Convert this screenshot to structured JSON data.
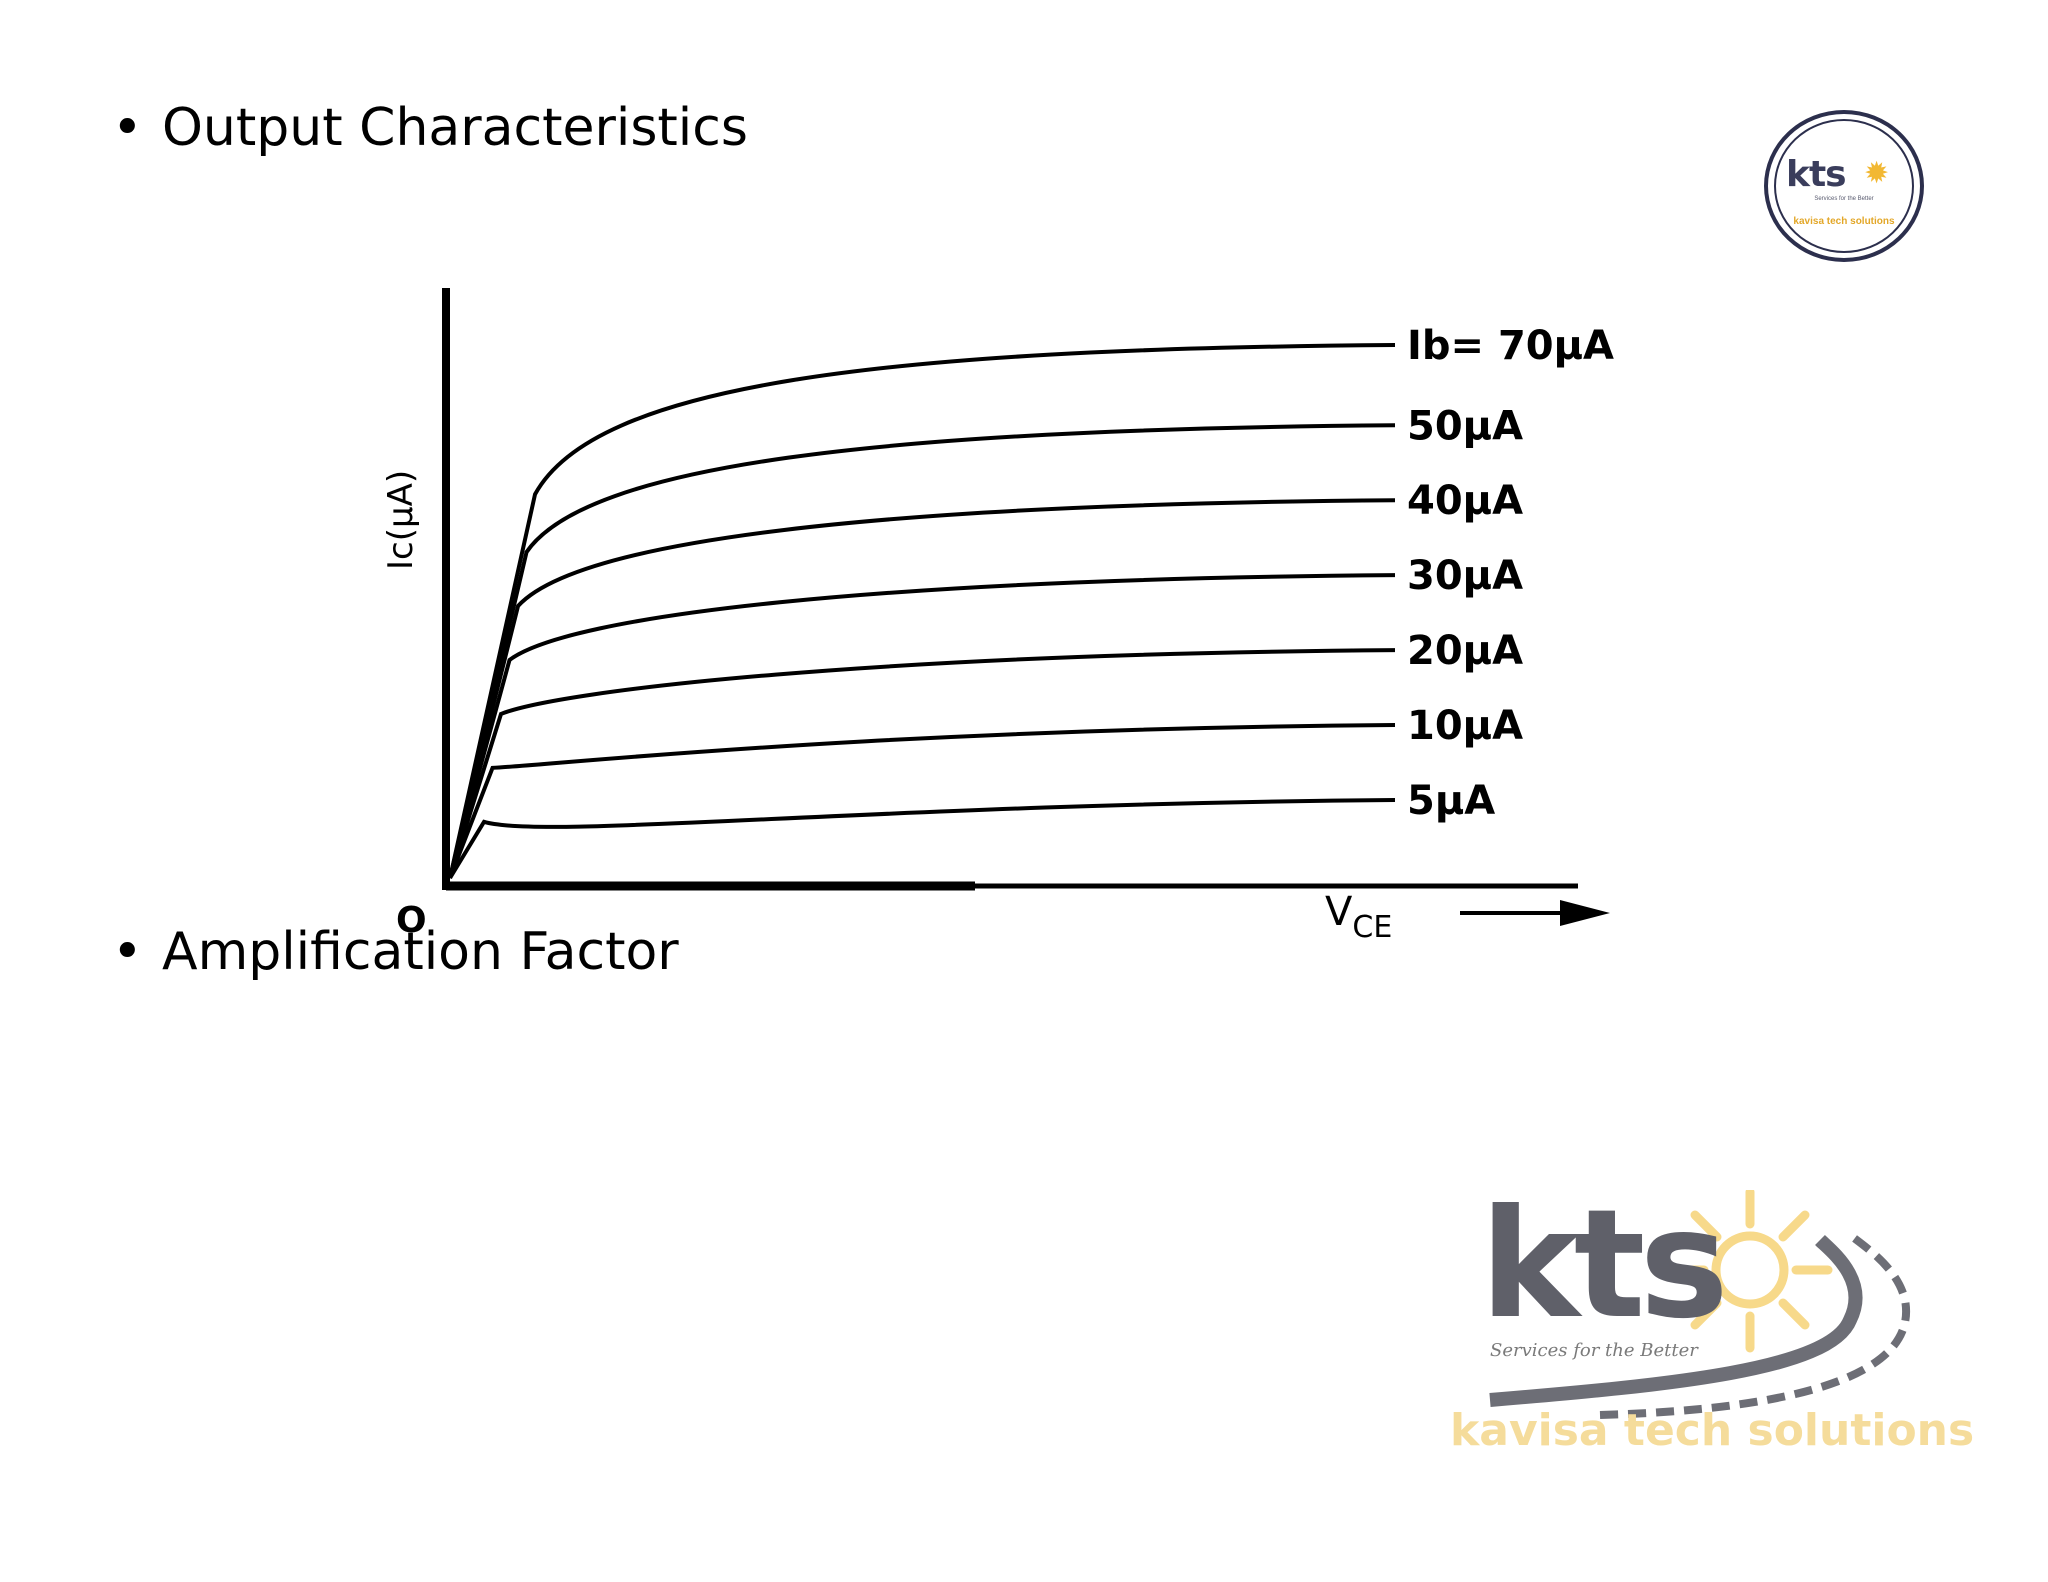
{
  "slide": {
    "bullet_glyph": "•",
    "bullet_1": "Output Characteristics",
    "bullet_2": "Amplification Factor"
  },
  "diagram": {
    "y_axis_label": "Ic(μA)",
    "origin_label": "O",
    "x_axis_label": "V",
    "x_axis_subscript": "CE",
    "curves": [
      {
        "label": "Ib= 70μA",
        "level": 1.0,
        "knee": 0.2
      },
      {
        "label": "50μA",
        "level": 0.85,
        "knee": 0.18
      },
      {
        "label": "40μA",
        "level": 0.71,
        "knee": 0.16
      },
      {
        "label": "30μA",
        "level": 0.57,
        "knee": 0.14
      },
      {
        "label": "20μA",
        "level": 0.43,
        "knee": 0.12
      },
      {
        "label": "10μA",
        "level": 0.29,
        "knee": 0.1
      },
      {
        "label": "5μA",
        "level": 0.15,
        "knee": 0.08
      }
    ]
  },
  "logos": {
    "small": {
      "word": "kts",
      "tagline": "Services for the Better",
      "company": "kavisa tech solutions",
      "icon": "sun-icon"
    },
    "large": {
      "word": "kts",
      "tagline": "Services for the Better",
      "company": "kavisa tech solutions",
      "icon": "sun-icon"
    },
    "colors": {
      "navy": "#2c2f4d",
      "gold": "#f2b833",
      "gray": "#5f6069"
    }
  }
}
